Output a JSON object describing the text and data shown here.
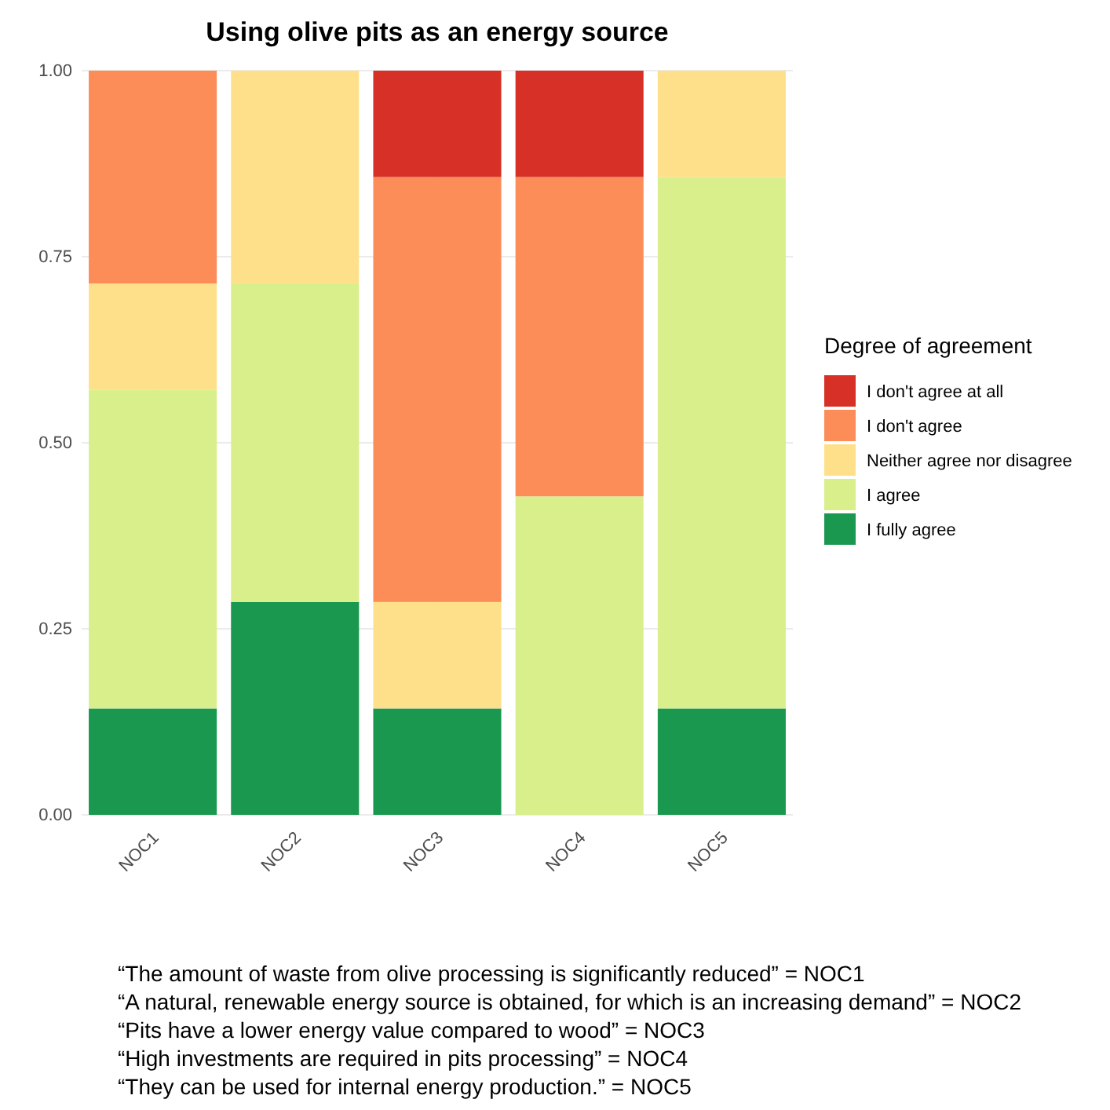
{
  "chart_data": {
    "type": "bar",
    "title": "Using olive pits as an energy source",
    "stacked": true,
    "legend_title": "Degree of agreement",
    "legend": "right",
    "grid": true,
    "categories": [
      "NOC1",
      "NOC2",
      "NOC3",
      "NOC4",
      "NOC5"
    ],
    "ylim": [
      0,
      1
    ],
    "yticks": [
      {
        "value": 0,
        "label": "0.00"
      },
      {
        "value": 0.25,
        "label": "0.25"
      },
      {
        "value": 0.5,
        "label": "0.50"
      },
      {
        "value": 0.75,
        "label": "0.75"
      },
      {
        "value": 1,
        "label": "1.00"
      }
    ],
    "series": [
      {
        "name": "I fully agree",
        "color": "#1a9850",
        "values": [
          0.143,
          0.286,
          0.143,
          0,
          0.143
        ]
      },
      {
        "name": "I agree",
        "color": "#d9ef8b",
        "values": [
          0.428,
          0.428,
          0,
          0.428,
          0.714
        ]
      },
      {
        "name": "Neither agree nor disagree",
        "color": "#fee08b",
        "values": [
          0.143,
          0.286,
          0.143,
          0,
          0.143
        ]
      },
      {
        "name": "I don't agree",
        "color": "#fc8d59",
        "values": [
          0.286,
          0,
          0.571,
          0.429,
          0
        ]
      },
      {
        "name": "I don't agree at all",
        "color": "#d73027",
        "values": [
          0,
          0,
          0.143,
          0.143,
          0
        ]
      }
    ],
    "annotations": [
      "“The amount of waste from olive processing is significantly reduced” = NOC1",
      "“A natural, renewable energy source is obtained, for which is an increasing demand” = NOC2",
      "“Pits have a lower energy value compared to wood” = NOC3",
      "“High investments are required in pits processing” = NOC4",
      "“They can be used for internal energy production.” = NOC5"
    ]
  }
}
